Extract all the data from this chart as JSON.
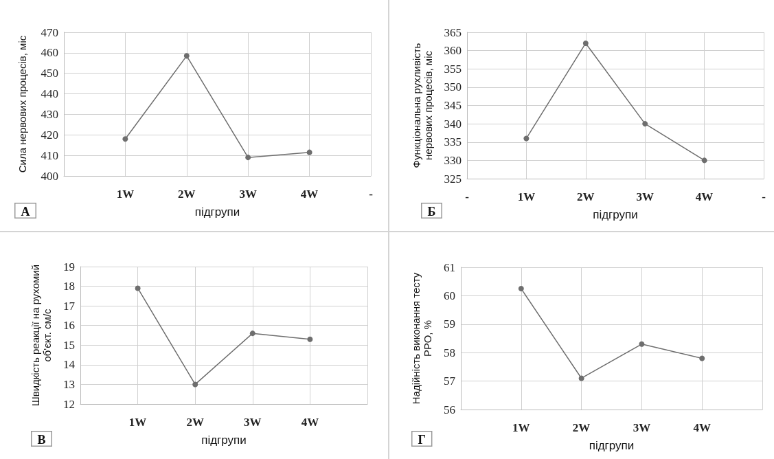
{
  "chart_data": [
    {
      "type": "line",
      "ylabel": "Сила нервових процесів, міс",
      "xlabel": "підгрупи",
      "annotations": [
        "А"
      ],
      "categories": [
        null,
        "1W",
        "2W",
        "3W",
        "4W",
        "-"
      ],
      "series": [
        {
          "color": "#6e6e6e",
          "values": [
            null,
            418,
            458.5,
            409,
            411.5,
            null
          ]
        }
      ],
      "ylim": [
        400,
        470
      ],
      "yticks": [
        400,
        410,
        420,
        430,
        440,
        450,
        460,
        470
      ],
      "grid": true,
      "marker": "circle",
      "line_style": "solid"
    },
    {
      "type": "line",
      "ylabel": "Функціональна рухливість нервових процесів, міс",
      "xlabel": "підгрупи",
      "annotations": [
        "Б"
      ],
      "categories": [
        "-",
        "1W",
        "2W",
        "3W",
        "4W",
        "-"
      ],
      "series": [
        {
          "color": "#6e6e6e",
          "values": [
            null,
            336,
            362,
            340,
            330,
            null
          ]
        }
      ],
      "ylim": [
        325,
        365
      ],
      "yticks": [
        325,
        330,
        335,
        340,
        345,
        350,
        355,
        360,
        365
      ],
      "grid": true,
      "marker": "circle",
      "line_style": "solid"
    },
    {
      "type": "line",
      "ylabel": "Швидкість реакції на рухомий об'єкт. см/с",
      "xlabel": "підгрупи",
      "annotations": [
        "В"
      ],
      "categories": [
        null,
        "1W",
        "2W",
        "3W",
        "4W",
        null
      ],
      "series": [
        {
          "color": "#6e6e6e",
          "values": [
            null,
            17.9,
            13,
            15.6,
            15.3,
            null
          ]
        }
      ],
      "ylim": [
        12,
        19
      ],
      "yticks": [
        12,
        13,
        14,
        15,
        16,
        17,
        18,
        19
      ],
      "grid": true,
      "marker": "circle",
      "line_style": "solid"
    },
    {
      "type": "line",
      "ylabel": "Надійність виконання тесту РРО, %",
      "xlabel": "підгрупи",
      "annotations": [
        "Г"
      ],
      "categories": [
        null,
        "1W",
        "2W",
        "3W",
        "4W",
        null
      ],
      "series": [
        {
          "color": "#6e6e6e",
          "values": [
            null,
            60.25,
            57.1,
            58.3,
            57.8,
            null
          ]
        }
      ],
      "ylim": [
        56,
        61
      ],
      "yticks": [
        56,
        57,
        58,
        59,
        60,
        61
      ],
      "grid": true,
      "marker": "circle",
      "line_style": "solid"
    }
  ]
}
